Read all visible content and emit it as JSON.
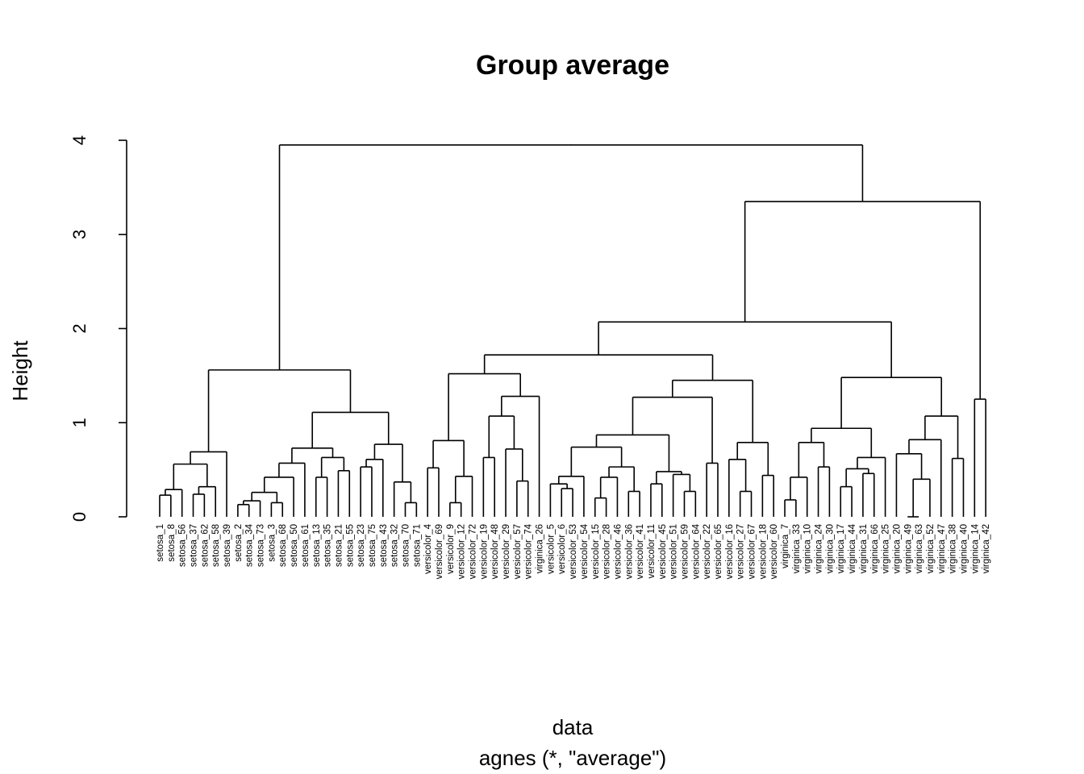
{
  "chart_data": {
    "type": "dendrogram",
    "title": "Group average",
    "xlabel": "data",
    "sublabel": "agnes (*, \"average\")",
    "ylabel": "Height",
    "ylim": [
      0,
      4
    ],
    "yticks": [
      "0",
      "1",
      "2",
      "3",
      "4"
    ],
    "tree": {
      "h": 3.95,
      "c": [
        {
          "h": 1.56,
          "c": [
            {
              "h": 0.69,
              "c": [
                {
                  "h": 0.56,
                  "c": [
                    {
                      "h": 0.29,
                      "c": [
                        {
                          "h": 0.23,
                          "c": [
                            "setosa_1",
                            "setosa_8"
                          ]
                        },
                        "setosa_56"
                      ]
                    },
                    {
                      "h": 0.32,
                      "c": [
                        {
                          "h": 0.24,
                          "c": [
                            "setosa_37",
                            "setosa_62"
                          ]
                        },
                        "setosa_58"
                      ]
                    }
                  ]
                },
                "setosa_39"
              ]
            },
            {
              "h": 1.11,
              "c": [
                {
                  "h": 0.73,
                  "c": [
                    {
                      "h": 0.57,
                      "c": [
                        {
                          "h": 0.42,
                          "c": [
                            {
                              "h": 0.26,
                              "c": [
                                {
                                  "h": 0.17,
                                  "c": [
                                    {
                                      "h": 0.13,
                                      "c": [
                                        "setosa_2",
                                        "setosa_34"
                                      ]
                                    },
                                    "setosa_73"
                                  ]
                                },
                                {
                                  "h": 0.15,
                                  "c": [
                                    "setosa_3",
                                    "setosa_68"
                                  ]
                                }
                              ]
                            },
                            "setosa_50"
                          ]
                        },
                        "setosa_61"
                      ]
                    },
                    {
                      "h": 0.63,
                      "c": [
                        {
                          "h": 0.42,
                          "c": [
                            "setosa_13",
                            "setosa_35"
                          ]
                        },
                        {
                          "h": 0.49,
                          "c": [
                            "setosa_21",
                            "setosa_55"
                          ]
                        }
                      ]
                    }
                  ]
                },
                {
                  "h": 0.77,
                  "c": [
                    {
                      "h": 0.61,
                      "c": [
                        {
                          "h": 0.53,
                          "c": [
                            "setosa_23",
                            "setosa_75"
                          ]
                        },
                        "setosa_43"
                      ]
                    },
                    {
                      "h": 0.37,
                      "c": [
                        "setosa_32",
                        {
                          "h": 0.15,
                          "c": [
                            "setosa_70",
                            "setosa_71"
                          ]
                        }
                      ]
                    }
                  ]
                }
              ]
            }
          ]
        },
        {
          "h": 3.35,
          "c": [
            {
              "h": 2.07,
              "c": [
                {
                  "h": 1.72,
                  "c": [
                    {
                      "h": 1.52,
                      "c": [
                        {
                          "h": 0.81,
                          "c": [
                            {
                              "h": 0.52,
                              "c": [
                                "versicolor_4",
                                "versicolor_69"
                              ]
                            },
                            {
                              "h": 0.43,
                              "c": [
                                {
                                  "h": 0.15,
                                  "c": [
                                    "versicolor_9",
                                    "versicolor_12"
                                  ]
                                },
                                "versicolor_72"
                              ]
                            }
                          ]
                        },
                        {
                          "h": 1.28,
                          "c": [
                            {
                              "h": 1.07,
                              "c": [
                                {
                                  "h": 0.63,
                                  "c": [
                                    "versicolor_19",
                                    "versicolor_48"
                                  ]
                                },
                                {
                                  "h": 0.72,
                                  "c": [
                                    "versicolor_29",
                                    {
                                      "h": 0.38,
                                      "c": [
                                        "versicolor_57",
                                        "versicolor_74"
                                      ]
                                    }
                                  ]
                                }
                              ]
                            },
                            "virginica_26"
                          ]
                        }
                      ]
                    },
                    {
                      "h": 1.45,
                      "c": [
                        {
                          "h": 1.27,
                          "c": [
                            {
                              "h": 0.87,
                              "c": [
                                {
                                  "h": 0.74,
                                  "c": [
                                    {
                                      "h": 0.43,
                                      "c": [
                                        {
                                          "h": 0.35,
                                          "c": [
                                            "versicolor_5",
                                            {
                                              "h": 0.3,
                                              "c": [
                                                "versicolor_6",
                                                "versicolor_53"
                                              ]
                                            }
                                          ]
                                        },
                                        "versicolor_54"
                                      ]
                                    },
                                    {
                                      "h": 0.53,
                                      "c": [
                                        {
                                          "h": 0.42,
                                          "c": [
                                            {
                                              "h": 0.2,
                                              "c": [
                                                "versicolor_15",
                                                "versicolor_28"
                                              ]
                                            },
                                            "versicolor_46"
                                          ]
                                        },
                                        {
                                          "h": 0.27,
                                          "c": [
                                            "versicolor_36",
                                            "versicolor_41"
                                          ]
                                        }
                                      ]
                                    }
                                  ]
                                },
                                {
                                  "h": 0.48,
                                  "c": [
                                    {
                                      "h": 0.35,
                                      "c": [
                                        "versicolor_11",
                                        "versicolor_45"
                                      ]
                                    },
                                    {
                                      "h": 0.45,
                                      "c": [
                                        "versicolor_51",
                                        {
                                          "h": 0.27,
                                          "c": [
                                            "versicolor_59",
                                            "versicolor_64"
                                          ]
                                        }
                                      ]
                                    }
                                  ]
                                }
                              ]
                            },
                            {
                              "h": 0.57,
                              "c": [
                                "versicolor_22",
                                "versicolor_65"
                              ]
                            }
                          ]
                        },
                        {
                          "h": 0.79,
                          "c": [
                            {
                              "h": 0.61,
                              "c": [
                                "versicolor_16",
                                {
                                  "h": 0.27,
                                  "c": [
                                    "versicolor_27",
                                    "versicolor_67"
                                  ]
                                }
                              ]
                            },
                            {
                              "h": 0.44,
                              "c": [
                                "versicolor_18",
                                "versicolor_60"
                              ]
                            }
                          ]
                        }
                      ]
                    }
                  ]
                },
                {
                  "h": 1.48,
                  "c": [
                    {
                      "h": 0.94,
                      "c": [
                        {
                          "h": 0.79,
                          "c": [
                            {
                              "h": 0.42,
                              "c": [
                                {
                                  "h": 0.18,
                                  "c": [
                                    "virginica_7",
                                    "virginica_33"
                                  ]
                                },
                                "virginica_10"
                              ]
                            },
                            {
                              "h": 0.53,
                              "c": [
                                "virginica_24",
                                "virginica_30"
                              ]
                            }
                          ]
                        },
                        {
                          "h": 0.63,
                          "c": [
                            {
                              "h": 0.51,
                              "c": [
                                {
                                  "h": 0.32,
                                  "c": [
                                    "virginica_17",
                                    "virginica_44"
                                  ]
                                },
                                {
                                  "h": 0.46,
                                  "c": [
                                    "virginica_31",
                                    "virginica_66"
                                  ]
                                }
                              ]
                            },
                            "virginica_25"
                          ]
                        }
                      ]
                    },
                    {
                      "h": 1.07,
                      "c": [
                        {
                          "h": 0.82,
                          "c": [
                            {
                              "h": 0.67,
                              "c": [
                                "virginica_20",
                                {
                                  "h": 0.4,
                                  "c": [
                                    {
                                      "h": 0.0,
                                      "c": [
                                        "virginica_49",
                                        "virginica_63"
                                      ]
                                    },
                                    "virginica_52"
                                  ]
                                }
                              ]
                            },
                            "virginica_47"
                          ]
                        },
                        {
                          "h": 0.62,
                          "c": [
                            "virginica_38",
                            "virginica_40"
                          ]
                        }
                      ]
                    }
                  ]
                }
              ]
            },
            {
              "h": 1.25,
              "c": [
                "virginica_14",
                "virginica_42"
              ]
            }
          ]
        }
      ]
    }
  }
}
